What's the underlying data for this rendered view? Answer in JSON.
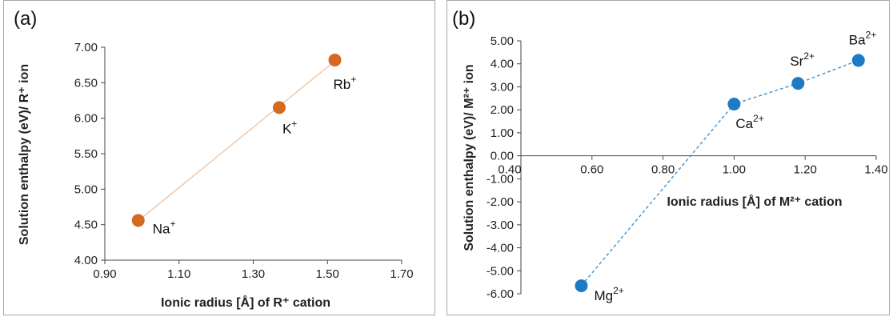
{
  "chart_data": [
    {
      "type": "scatter",
      "panel_label": "(a)",
      "xlabel": "Ionic radius [Å] of R⁺ cation",
      "ylabel": "Solution enthalpy (eV)/ R⁺ ion",
      "xlim": [
        0.9,
        1.7
      ],
      "ylim": [
        4.0,
        7.0
      ],
      "x_ticks": [
        "0.90",
        "1.10",
        "1.30",
        "1.50",
        "1.70"
      ],
      "y_ticks": [
        "4.00",
        "4.50",
        "5.00",
        "5.50",
        "6.00",
        "6.50",
        "7.00"
      ],
      "grid": false,
      "trendline": "linear",
      "marker_color": "#d4691f",
      "line_color": "#f0c9a8",
      "points": [
        {
          "x": 0.99,
          "y": 4.56,
          "label": "Na",
          "charge": "+"
        },
        {
          "x": 1.37,
          "y": 6.15,
          "label": "K",
          "charge": "+"
        },
        {
          "x": 1.52,
          "y": 6.82,
          "label": "Rb",
          "charge": "+"
        }
      ]
    },
    {
      "type": "line",
      "panel_label": "(b)",
      "xlabel": "Ionic radius [Å] of M²⁺ cation",
      "ylabel": "Solution enthalpy (eV)/ M²⁺ ion",
      "xlim": [
        0.4,
        1.4
      ],
      "ylim": [
        -6.0,
        5.0
      ],
      "x_ticks": [
        "0.40",
        "0.60",
        "0.80",
        "1.00",
        "1.20",
        "1.40"
      ],
      "y_ticks": [
        "-6.00",
        "-5.00",
        "-4.00",
        "-3.00",
        "-2.00",
        "-1.00",
        "0.00",
        "1.00",
        "2.00",
        "3.00",
        "4.00",
        "5.00"
      ],
      "grid": false,
      "line_style": "dashed",
      "marker_color": "#1f7ac4",
      "line_color": "#4a9ad6",
      "points": [
        {
          "x": 0.57,
          "y": -5.65,
          "label": "Mg",
          "charge": "2+"
        },
        {
          "x": 1.0,
          "y": 2.25,
          "label": "Ca",
          "charge": "2+"
        },
        {
          "x": 1.18,
          "y": 3.15,
          "label": "Sr",
          "charge": "2+"
        },
        {
          "x": 1.35,
          "y": 4.15,
          "label": "Ba",
          "charge": "2+"
        }
      ]
    }
  ]
}
